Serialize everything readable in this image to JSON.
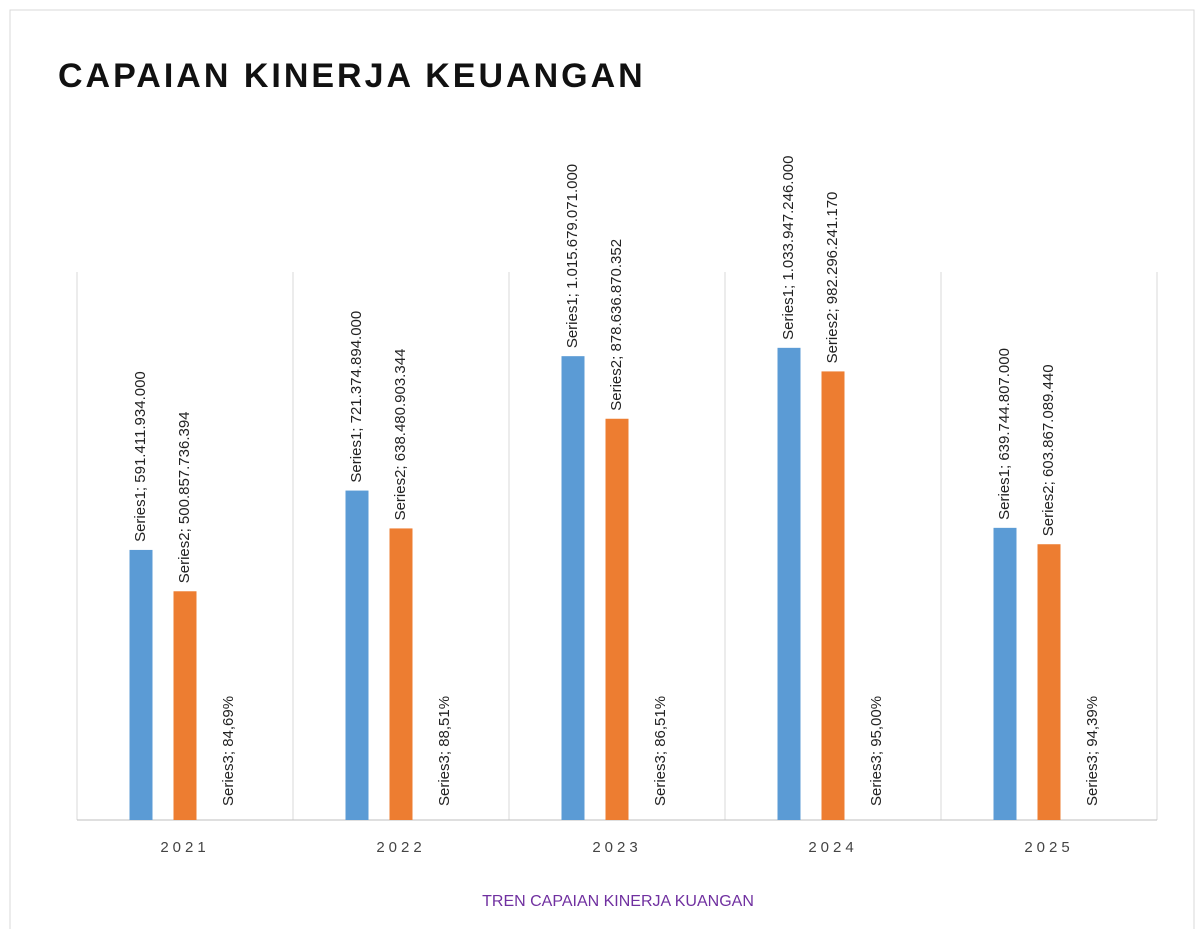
{
  "chart_data": {
    "type": "bar",
    "title": "CAPAIAN KINERJA KEUANGAN",
    "subtitle": "TREN CAPAIAN KINERJA KUANGAN",
    "categories": [
      "2021",
      "2022",
      "2023",
      "2024",
      "2025"
    ],
    "series": [
      {
        "name": "Series1",
        "color": "#5b9bd5",
        "values": [
          591411934000,
          721374894000,
          1015679071000,
          1033947246000,
          639744807000
        ],
        "value_labels": [
          "Series1; 591.411.934.000",
          "Series1; 721.374.894.000",
          "Series1; 1.015.679.071.000",
          "Series1; 1.033.947.246.000",
          "Series1; 639.744.807.000"
        ]
      },
      {
        "name": "Series2",
        "color": "#ed7d31",
        "values": [
          500857736394,
          638480903344,
          878636870352,
          982296241170,
          603867089440
        ],
        "value_labels": [
          "Series2; 500.857.736.394",
          "Series2; 638.480.903.344",
          "Series2; 878.636.870.352",
          "Series2; 982.296.241.170",
          "Series2; 603.867.089.440"
        ]
      },
      {
        "name": "Series3",
        "color": "#a5a5a5",
        "values": [
          84.69,
          88.51,
          86.51,
          95.0,
          94.39
        ],
        "value_labels": [
          "Series3; 84,69%",
          "Series3; 88,51%",
          "Series3; 86,51%",
          "Series3; 95,00%",
          "Series3; 94,39%"
        ]
      }
    ],
    "ylim": [
      0,
      1200000000000
    ],
    "grid": true
  }
}
